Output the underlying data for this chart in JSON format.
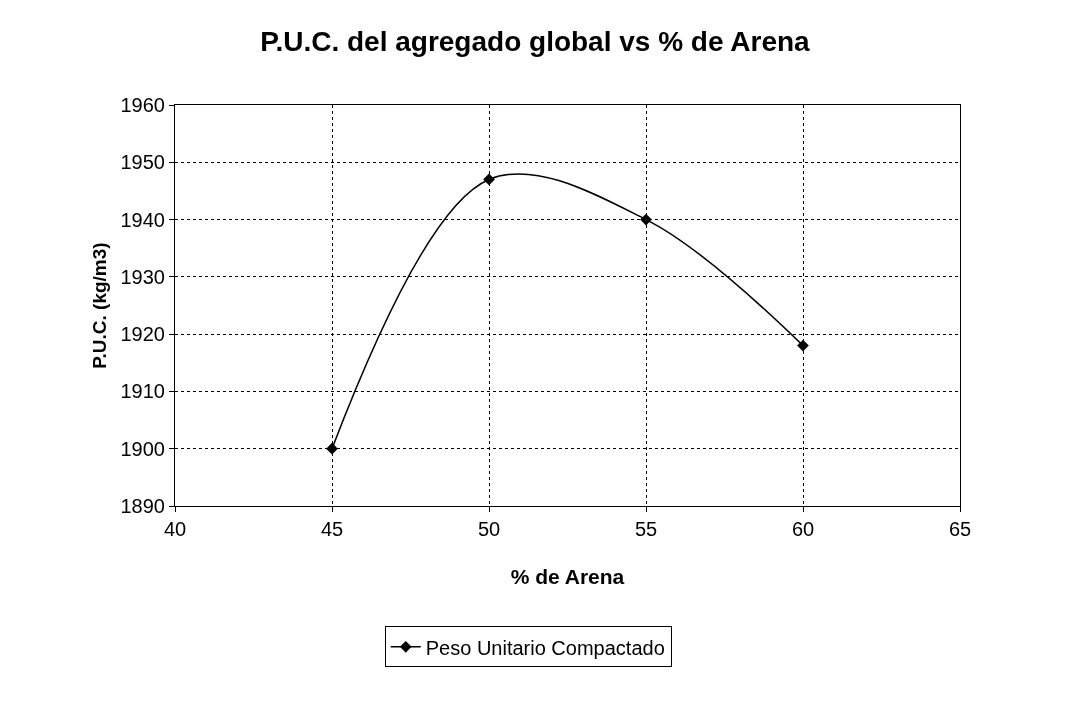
{
  "chart_data": {
    "type": "line",
    "title": "P.U.C. del agregado global vs % de Arena",
    "xlabel": "% de Arena",
    "ylabel": "P.U.C. (kg/m3)",
    "x": [
      45,
      50,
      55,
      60
    ],
    "series": [
      {
        "name": "Peso Unitario Compactado",
        "color": "#000000",
        "values": [
          1900,
          1947,
          1940,
          1918
        ]
      }
    ],
    "xlim": [
      40,
      65
    ],
    "xticks": [
      40,
      45,
      50,
      55,
      60,
      65
    ],
    "ylim": [
      1890,
      1960
    ],
    "yticks": [
      1890,
      1900,
      1910,
      1920,
      1930,
      1940,
      1950,
      1960
    ],
    "grid": true,
    "legend": "bottom",
    "marker": "diamond",
    "line_style": "solid"
  }
}
